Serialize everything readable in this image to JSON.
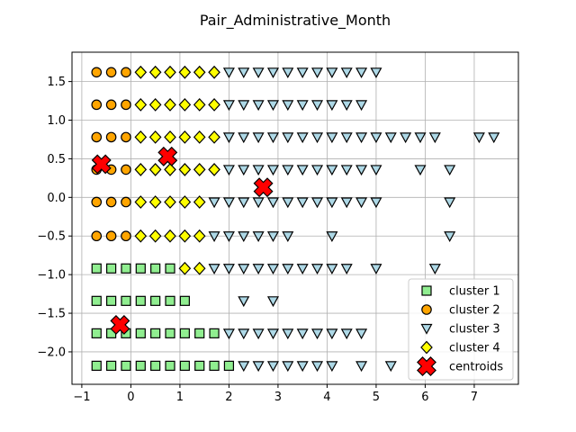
{
  "chart_data": {
    "type": "scatter",
    "title": "Pair_Administrative_Month",
    "xlabel": "",
    "ylabel": "",
    "xlim": [
      -1.2,
      7.9
    ],
    "ylim": [
      -2.42,
      1.88
    ],
    "grid": true,
    "legend_position": "lower-right",
    "xticks": [
      -1,
      0,
      1,
      2,
      3,
      4,
      5,
      6,
      7
    ],
    "yticks": [
      -2.0,
      -1.5,
      -1.0,
      -0.5,
      0.0,
      0.5,
      1.0,
      1.5
    ],
    "xtick_labels": [
      "−1",
      "0",
      "1",
      "2",
      "3",
      "4",
      "5",
      "6",
      "7"
    ],
    "ytick_labels": [
      "−2.0",
      "−1.5",
      "−1.0",
      "−0.5",
      "0.0",
      "0.5",
      "1.0",
      "1.5"
    ],
    "series": [
      {
        "name": "cluster 1",
        "marker": "square",
        "color": "#90ee90",
        "points": [
          [
            -0.7,
            -0.92
          ],
          [
            -0.4,
            -0.92
          ],
          [
            -0.1,
            -0.92
          ],
          [
            0.2,
            -0.92
          ],
          [
            0.5,
            -0.92
          ],
          [
            0.8,
            -0.92
          ],
          [
            -0.7,
            -1.34
          ],
          [
            -0.4,
            -1.34
          ],
          [
            -0.1,
            -1.34
          ],
          [
            0.2,
            -1.34
          ],
          [
            0.5,
            -1.34
          ],
          [
            0.8,
            -1.34
          ],
          [
            1.1,
            -1.34
          ],
          [
            -0.7,
            -1.76
          ],
          [
            -0.4,
            -1.76
          ],
          [
            -0.1,
            -1.76
          ],
          [
            0.2,
            -1.76
          ],
          [
            0.5,
            -1.76
          ],
          [
            0.8,
            -1.76
          ],
          [
            1.1,
            -1.76
          ],
          [
            1.4,
            -1.76
          ],
          [
            1.7,
            -1.76
          ],
          [
            -0.7,
            -2.18
          ],
          [
            -0.4,
            -2.18
          ],
          [
            -0.1,
            -2.18
          ],
          [
            0.2,
            -2.18
          ],
          [
            0.5,
            -2.18
          ],
          [
            0.8,
            -2.18
          ],
          [
            1.1,
            -2.18
          ],
          [
            1.4,
            -2.18
          ],
          [
            1.7,
            -2.18
          ],
          [
            2.0,
            -2.18
          ]
        ]
      },
      {
        "name": "cluster 2",
        "marker": "circle",
        "color": "#ffa500",
        "points": [
          [
            -0.7,
            1.62
          ],
          [
            -0.4,
            1.62
          ],
          [
            -0.1,
            1.62
          ],
          [
            -0.7,
            1.2
          ],
          [
            -0.4,
            1.2
          ],
          [
            -0.1,
            1.2
          ],
          [
            -0.7,
            0.78
          ],
          [
            -0.4,
            0.78
          ],
          [
            -0.1,
            0.78
          ],
          [
            -0.7,
            0.36
          ],
          [
            -0.4,
            0.36
          ],
          [
            -0.1,
            0.36
          ],
          [
            -0.7,
            -0.06
          ],
          [
            -0.4,
            -0.06
          ],
          [
            -0.1,
            -0.06
          ],
          [
            -0.7,
            -0.5
          ],
          [
            -0.4,
            -0.5
          ],
          [
            -0.1,
            -0.5
          ]
        ]
      },
      {
        "name": "cluster 3",
        "marker": "triangle-down",
        "color": "#add8e6",
        "points": [
          [
            2.0,
            1.62
          ],
          [
            2.3,
            1.62
          ],
          [
            2.6,
            1.62
          ],
          [
            2.9,
            1.62
          ],
          [
            3.2,
            1.62
          ],
          [
            3.5,
            1.62
          ],
          [
            3.8,
            1.62
          ],
          [
            4.1,
            1.62
          ],
          [
            4.4,
            1.62
          ],
          [
            4.7,
            1.62
          ],
          [
            5.0,
            1.62
          ],
          [
            2.0,
            1.2
          ],
          [
            2.3,
            1.2
          ],
          [
            2.6,
            1.2
          ],
          [
            2.9,
            1.2
          ],
          [
            3.2,
            1.2
          ],
          [
            3.5,
            1.2
          ],
          [
            3.8,
            1.2
          ],
          [
            4.1,
            1.2
          ],
          [
            4.4,
            1.2
          ],
          [
            4.7,
            1.2
          ],
          [
            2.0,
            0.78
          ],
          [
            2.3,
            0.78
          ],
          [
            2.6,
            0.78
          ],
          [
            2.9,
            0.78
          ],
          [
            3.2,
            0.78
          ],
          [
            3.5,
            0.78
          ],
          [
            3.8,
            0.78
          ],
          [
            4.1,
            0.78
          ],
          [
            4.4,
            0.78
          ],
          [
            4.7,
            0.78
          ],
          [
            5.0,
            0.78
          ],
          [
            5.3,
            0.78
          ],
          [
            5.6,
            0.78
          ],
          [
            5.9,
            0.78
          ],
          [
            6.2,
            0.78
          ],
          [
            7.1,
            0.78
          ],
          [
            7.4,
            0.78
          ],
          [
            2.0,
            0.36
          ],
          [
            2.3,
            0.36
          ],
          [
            2.6,
            0.36
          ],
          [
            2.9,
            0.36
          ],
          [
            3.2,
            0.36
          ],
          [
            3.5,
            0.36
          ],
          [
            3.8,
            0.36
          ],
          [
            4.1,
            0.36
          ],
          [
            4.4,
            0.36
          ],
          [
            4.7,
            0.36
          ],
          [
            5.0,
            0.36
          ],
          [
            5.9,
            0.36
          ],
          [
            6.5,
            0.36
          ],
          [
            1.7,
            -0.06
          ],
          [
            2.0,
            -0.06
          ],
          [
            2.3,
            -0.06
          ],
          [
            2.6,
            -0.06
          ],
          [
            2.9,
            -0.06
          ],
          [
            3.2,
            -0.06
          ],
          [
            3.5,
            -0.06
          ],
          [
            3.8,
            -0.06
          ],
          [
            4.1,
            -0.06
          ],
          [
            4.4,
            -0.06
          ],
          [
            4.7,
            -0.06
          ],
          [
            5.0,
            -0.06
          ],
          [
            6.5,
            -0.06
          ],
          [
            1.7,
            -0.5
          ],
          [
            2.0,
            -0.5
          ],
          [
            2.3,
            -0.5
          ],
          [
            2.6,
            -0.5
          ],
          [
            2.9,
            -0.5
          ],
          [
            3.2,
            -0.5
          ],
          [
            4.1,
            -0.5
          ],
          [
            6.5,
            -0.5
          ],
          [
            1.7,
            -0.92
          ],
          [
            2.0,
            -0.92
          ],
          [
            2.3,
            -0.92
          ],
          [
            2.6,
            -0.92
          ],
          [
            2.9,
            -0.92
          ],
          [
            3.2,
            -0.92
          ],
          [
            3.5,
            -0.92
          ],
          [
            3.8,
            -0.92
          ],
          [
            4.1,
            -0.92
          ],
          [
            4.4,
            -0.92
          ],
          [
            5.0,
            -0.92
          ],
          [
            6.2,
            -0.92
          ],
          [
            2.3,
            -1.34
          ],
          [
            2.9,
            -1.34
          ],
          [
            2.0,
            -1.76
          ],
          [
            2.3,
            -1.76
          ],
          [
            2.6,
            -1.76
          ],
          [
            2.9,
            -1.76
          ],
          [
            3.2,
            -1.76
          ],
          [
            3.5,
            -1.76
          ],
          [
            3.8,
            -1.76
          ],
          [
            4.1,
            -1.76
          ],
          [
            4.4,
            -1.76
          ],
          [
            4.7,
            -1.76
          ],
          [
            2.3,
            -2.18
          ],
          [
            2.6,
            -2.18
          ],
          [
            2.9,
            -2.18
          ],
          [
            3.2,
            -2.18
          ],
          [
            3.5,
            -2.18
          ],
          [
            3.8,
            -2.18
          ],
          [
            4.1,
            -2.18
          ],
          [
            4.7,
            -2.18
          ],
          [
            5.3,
            -2.18
          ]
        ]
      },
      {
        "name": "cluster 4",
        "marker": "diamond",
        "color": "#ffff00",
        "points": [
          [
            0.2,
            1.62
          ],
          [
            0.5,
            1.62
          ],
          [
            0.8,
            1.62
          ],
          [
            1.1,
            1.62
          ],
          [
            1.4,
            1.62
          ],
          [
            1.7,
            1.62
          ],
          [
            0.2,
            1.2
          ],
          [
            0.5,
            1.2
          ],
          [
            0.8,
            1.2
          ],
          [
            1.1,
            1.2
          ],
          [
            1.4,
            1.2
          ],
          [
            1.7,
            1.2
          ],
          [
            0.2,
            0.78
          ],
          [
            0.5,
            0.78
          ],
          [
            0.8,
            0.78
          ],
          [
            1.1,
            0.78
          ],
          [
            1.4,
            0.78
          ],
          [
            1.7,
            0.78
          ],
          [
            0.2,
            0.36
          ],
          [
            0.5,
            0.36
          ],
          [
            0.8,
            0.36
          ],
          [
            1.1,
            0.36
          ],
          [
            1.4,
            0.36
          ],
          [
            1.7,
            0.36
          ],
          [
            0.2,
            -0.06
          ],
          [
            0.5,
            -0.06
          ],
          [
            0.8,
            -0.06
          ],
          [
            1.1,
            -0.06
          ],
          [
            1.4,
            -0.06
          ],
          [
            0.2,
            -0.5
          ],
          [
            0.5,
            -0.5
          ],
          [
            0.8,
            -0.5
          ],
          [
            1.1,
            -0.5
          ],
          [
            1.4,
            -0.5
          ],
          [
            1.1,
            -0.92
          ],
          [
            1.4,
            -0.92
          ]
        ]
      },
      {
        "name": "centroids",
        "marker": "x",
        "color": "#ff0000",
        "points": [
          [
            -0.6,
            0.43
          ],
          [
            0.75,
            0.53
          ],
          [
            2.7,
            0.13
          ],
          [
            -0.22,
            -1.65
          ]
        ]
      }
    ]
  }
}
